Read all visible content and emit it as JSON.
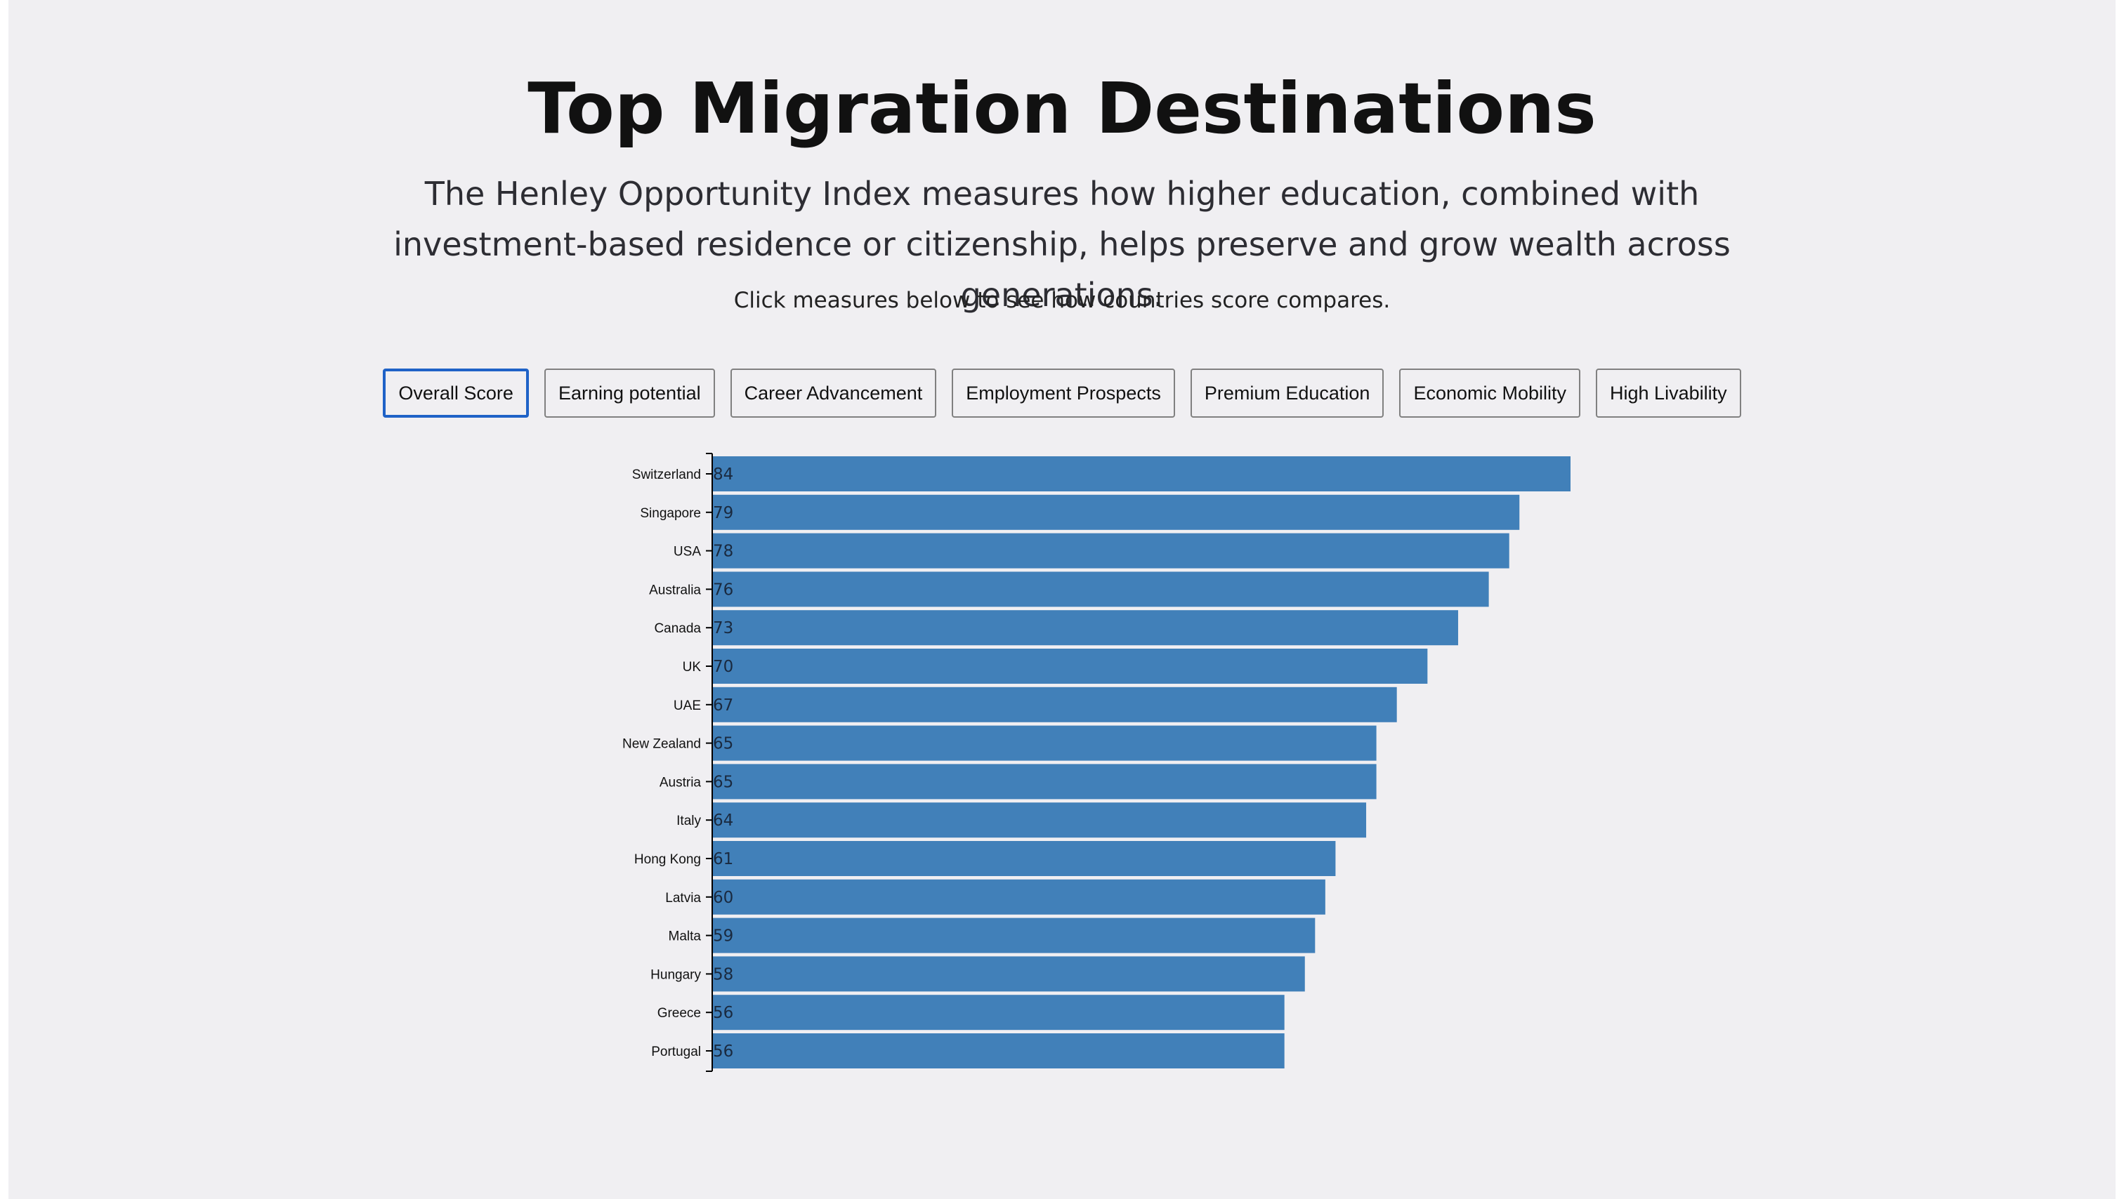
{
  "page": {
    "title": "Top Migration Destinations",
    "subtitle": "The Henley Opportunity Index measures how higher education, combined with investment-based residence or citizenship, helps preserve and grow wealth across generations.",
    "hint": "Click measures below to see how countries score compares."
  },
  "buttons": [
    {
      "label": "Overall Score",
      "active": true
    },
    {
      "label": "Earning potential",
      "active": false
    },
    {
      "label": "Career Advancement",
      "active": false
    },
    {
      "label": "Employment Prospects",
      "active": false
    },
    {
      "label": "Premium Education",
      "active": false
    },
    {
      "label": "Economic Mobility",
      "active": false
    },
    {
      "label": "High Livability",
      "active": false
    }
  ],
  "colors": {
    "bar": "#4180b9",
    "active_border": "#1f62c7",
    "background": "#f0eff2"
  },
  "chart_data": {
    "type": "bar",
    "orientation": "horizontal",
    "categories": [
      "Switzerland",
      "Singapore",
      "USA",
      "Australia",
      "Canada",
      "UK",
      "UAE",
      "New Zealand",
      "Austria",
      "Italy",
      "Hong Kong",
      "Latvia",
      "Malta",
      "Hungary",
      "Greece",
      "Portugal"
    ],
    "values": [
      84,
      79,
      78,
      76,
      73,
      70,
      67,
      65,
      65,
      64,
      61,
      60,
      59,
      58,
      56,
      56
    ],
    "data_labels": [
      "84",
      "79",
      "78",
      "76",
      "73",
      "70",
      "67",
      "65",
      "65",
      "64",
      "61",
      "60",
      "59",
      "58",
      "56",
      "56"
    ],
    "xlim": [
      0,
      84
    ],
    "grid": false
  }
}
